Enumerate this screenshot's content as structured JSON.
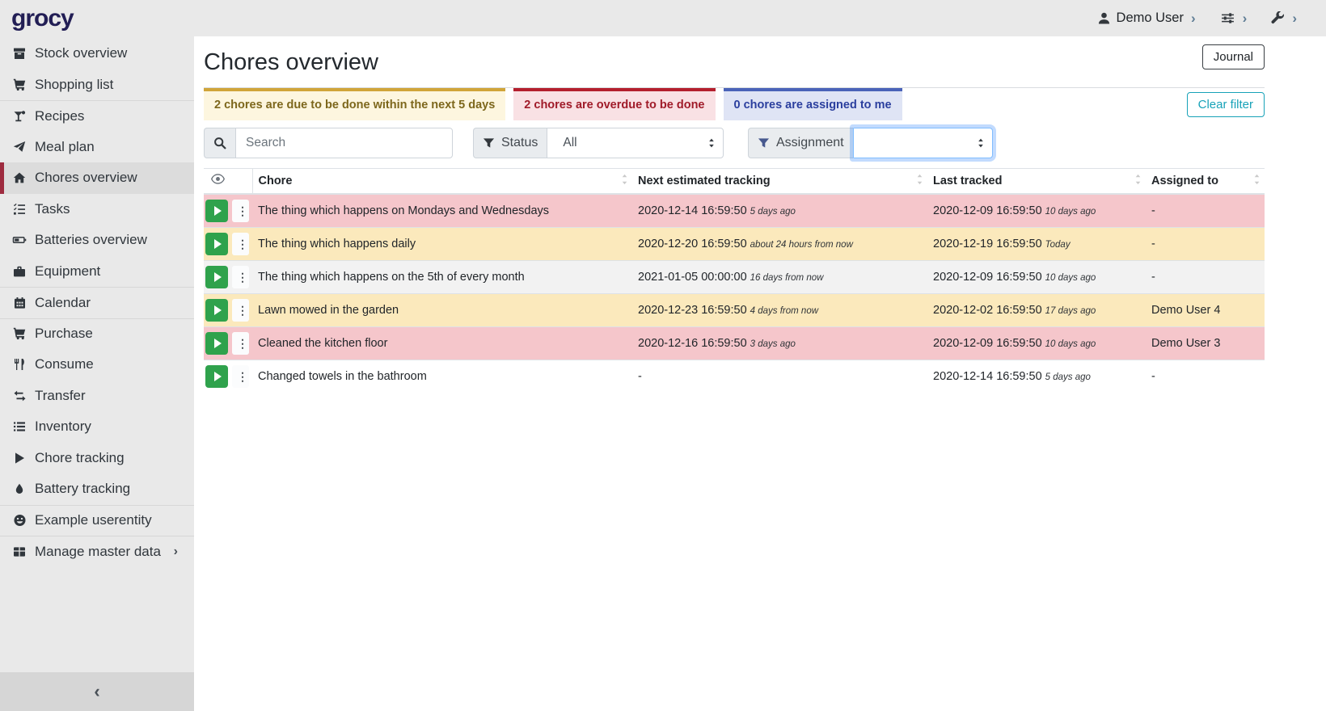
{
  "app": {
    "logo": "grocy"
  },
  "topbar": {
    "user_label": "Demo User"
  },
  "sidebar": {
    "items": [
      {
        "label": "Stock overview",
        "icon": "box"
      },
      {
        "label": "Shopping list",
        "icon": "cart"
      },
      {
        "label": "Recipes",
        "icon": "cocktail",
        "divider_before": true
      },
      {
        "label": "Meal plan",
        "icon": "paper-plane"
      },
      {
        "label": "Chores overview",
        "icon": "home",
        "active": true
      },
      {
        "label": "Tasks",
        "icon": "tasks"
      },
      {
        "label": "Batteries overview",
        "icon": "battery"
      },
      {
        "label": "Equipment",
        "icon": "toolbox"
      },
      {
        "label": "Calendar",
        "icon": "calendar",
        "divider_before": true
      },
      {
        "label": "Purchase",
        "icon": "cart",
        "divider_before": true
      },
      {
        "label": "Consume",
        "icon": "utensils"
      },
      {
        "label": "Transfer",
        "icon": "exchange"
      },
      {
        "label": "Inventory",
        "icon": "list"
      },
      {
        "label": "Chore tracking",
        "icon": "play"
      },
      {
        "label": "Battery tracking",
        "icon": "drop"
      },
      {
        "label": "Example userentity",
        "icon": "smiley",
        "divider_before": true
      },
      {
        "label": "Manage master data",
        "icon": "table",
        "divider_before": true,
        "chevron": true
      }
    ]
  },
  "header": {
    "title": "Chores overview",
    "journal_label": "Journal"
  },
  "banners": [
    {
      "type": "warning",
      "text": "2 chores are due to be done within the next 5 days"
    },
    {
      "type": "danger",
      "text": "2 chores are overdue to be done"
    },
    {
      "type": "info",
      "text": "0 chores are assigned to me"
    }
  ],
  "filters": {
    "search_placeholder": "Search",
    "status_label": "Status",
    "status_value": "All",
    "assignment_label": "Assignment",
    "assignment_value": "",
    "clear_filter_label": "Clear filter"
  },
  "table": {
    "columns": [
      "Chore",
      "Next estimated tracking",
      "Last tracked",
      "Assigned to"
    ],
    "rows": [
      {
        "chore": "The thing which happens on Mondays and Wednesdays",
        "next": "2020-12-14 16:59:50",
        "next_rel": "5 days ago",
        "last": "2020-12-09 16:59:50",
        "last_rel": "10 days ago",
        "assigned": "-",
        "status": "danger"
      },
      {
        "chore": "The thing which happens daily",
        "next": "2020-12-20 16:59:50",
        "next_rel": "about 24 hours from now",
        "last": "2020-12-19 16:59:50",
        "last_rel": "Today",
        "assigned": "-",
        "status": "warning"
      },
      {
        "chore": "The thing which happens on the 5th of every month",
        "next": "2021-01-05 00:00:00",
        "next_rel": "16 days from now",
        "last": "2020-12-09 16:59:50",
        "last_rel": "10 days ago",
        "assigned": "-",
        "status": "stripe"
      },
      {
        "chore": "Lawn mowed in the garden",
        "next": "2020-12-23 16:59:50",
        "next_rel": "4 days from now",
        "last": "2020-12-02 16:59:50",
        "last_rel": "17 days ago",
        "assigned": "Demo User 4",
        "status": "warning"
      },
      {
        "chore": "Cleaned the kitchen floor",
        "next": "2020-12-16 16:59:50",
        "next_rel": "3 days ago",
        "last": "2020-12-09 16:59:50",
        "last_rel": "10 days ago",
        "assigned": "Demo User 3",
        "status": "danger"
      },
      {
        "chore": "Changed towels in the bathroom",
        "next": "-",
        "next_rel": "",
        "last": "2020-12-14 16:59:50",
        "last_rel": "5 days ago",
        "assigned": "-",
        "status": "plain"
      }
    ]
  },
  "colors": {
    "accent_red": "#9e2b3f",
    "success_green": "#2fa24c",
    "clear_filter_teal": "#17a2b8",
    "danger_row": "#f5c6cb",
    "warning_row": "#fbe9bc",
    "banner_warning_border": "#d0a439",
    "banner_danger_border": "#b41f2d",
    "banner_info_border": "#4a63b8"
  }
}
